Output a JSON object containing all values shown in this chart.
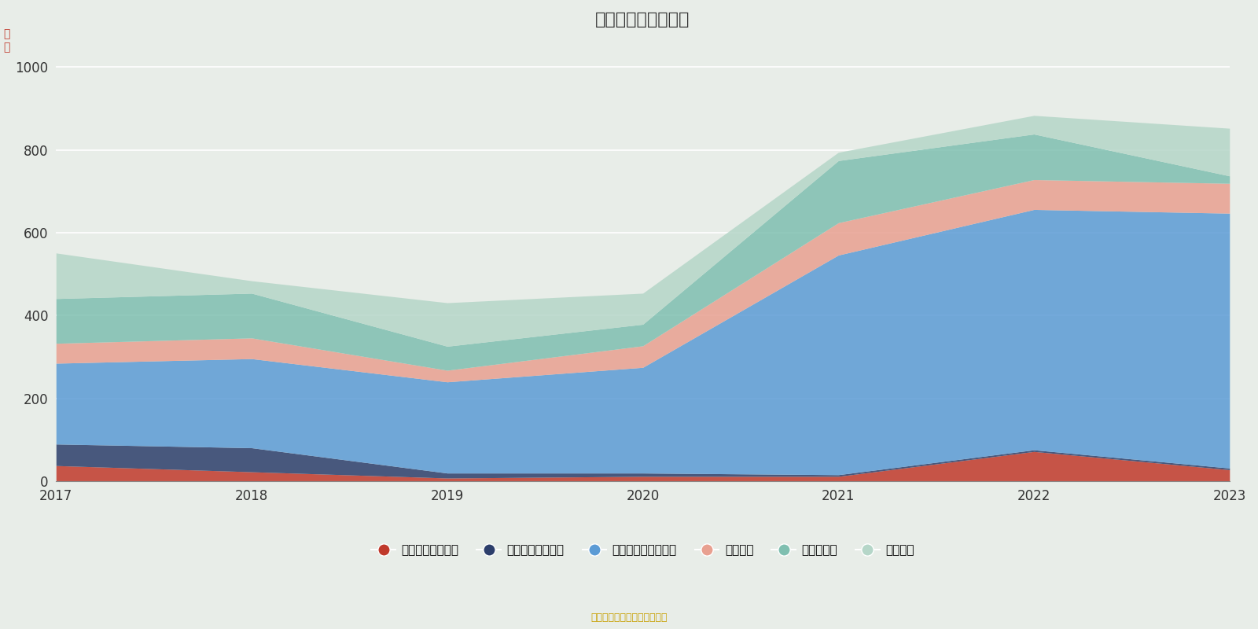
{
  "title": "历年主要资产堆积图",
  "ylabel": "亿\n元",
  "years": [
    2017,
    2018,
    2019,
    2020,
    2021,
    2022,
    2023
  ],
  "series_order": [
    "买入返售金融资产",
    "可供出售金融资产",
    "交易性金融资产合计",
    "融出资金",
    "结算备付金",
    "货币资金"
  ],
  "series": {
    "买入返售金融资产": [
      38,
      23,
      8,
      12,
      12,
      72,
      28
    ],
    "可供出售金融资产": [
      52,
      58,
      12,
      8,
      4,
      4,
      4
    ],
    "交易性金融资产合计": [
      195,
      215,
      220,
      255,
      530,
      580,
      615
    ],
    "融出资金": [
      48,
      50,
      28,
      52,
      78,
      72,
      72
    ],
    "结算备付金": [
      108,
      108,
      58,
      52,
      150,
      110,
      18
    ],
    "货币资金": [
      110,
      30,
      105,
      75,
      20,
      45,
      115
    ]
  },
  "colors": {
    "买入返售金融资产": "#c0392b",
    "可供出售金融资产": "#2c3e6b",
    "交易性金融资产合计": "#5b9bd5",
    "融出资金": "#e8a090",
    "结算备付金": "#7fbfb0",
    "货币资金": "#b5d6c8"
  },
  "ylim": [
    0,
    1050
  ],
  "yticks": [
    0,
    200,
    400,
    600,
    800,
    1000
  ],
  "background_color": "#e8ede8",
  "grid_color": "#ffffff",
  "title_fontsize": 16,
  "source_text": "制图数据来自恒生聚源数据库",
  "source_color": "#c8a000"
}
